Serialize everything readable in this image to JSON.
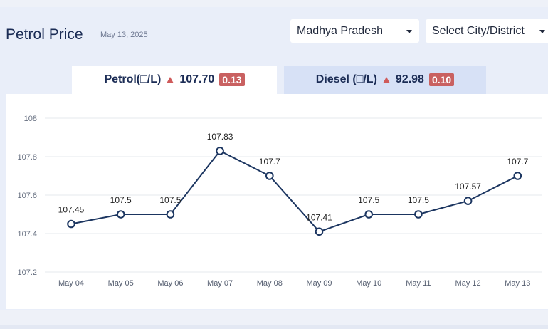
{
  "header": {
    "title": "Petrol Price",
    "date": "May 13, 2025"
  },
  "filters": {
    "state": "Madhya Pradesh",
    "city_placeholder": "Select City/District"
  },
  "tabs": [
    {
      "label": "Petrol(□/L)",
      "price": "107.70",
      "change": "0.13",
      "active": true
    },
    {
      "label": "Diesel (□/L)",
      "price": "92.98",
      "change": "0.10",
      "active": false
    }
  ],
  "colors": {
    "line": "#1b3560",
    "increase": "#cf5a5a",
    "badge": "#c96161",
    "active_tab": "#ffffff",
    "inactive_tab": "#d7e1f6"
  },
  "icons": {
    "trend": "up-triangle-icon",
    "dropdown": "chevron-down-icon"
  },
  "chart_data": {
    "type": "line",
    "categories": [
      "May 04",
      "May 05",
      "May 06",
      "May 07",
      "May 08",
      "May 09",
      "May 10",
      "May 11",
      "May 12",
      "May 13"
    ],
    "series": [
      {
        "values": [
          107.45,
          107.5,
          107.5,
          107.83,
          107.7,
          107.41,
          107.5,
          107.5,
          107.57,
          107.7
        ]
      }
    ],
    "data_labels": [
      "107.45",
      "107.5",
      "107.5",
      "107.83",
      "107.7",
      "107.41",
      "107.5",
      "107.5",
      "107.57",
      "107.7"
    ],
    "ylim": [
      107.2,
      108
    ],
    "yticks": [
      "107.2",
      "107.4",
      "107.6",
      "107.8",
      "108"
    ],
    "grid": true,
    "markers": "hollow circles"
  }
}
